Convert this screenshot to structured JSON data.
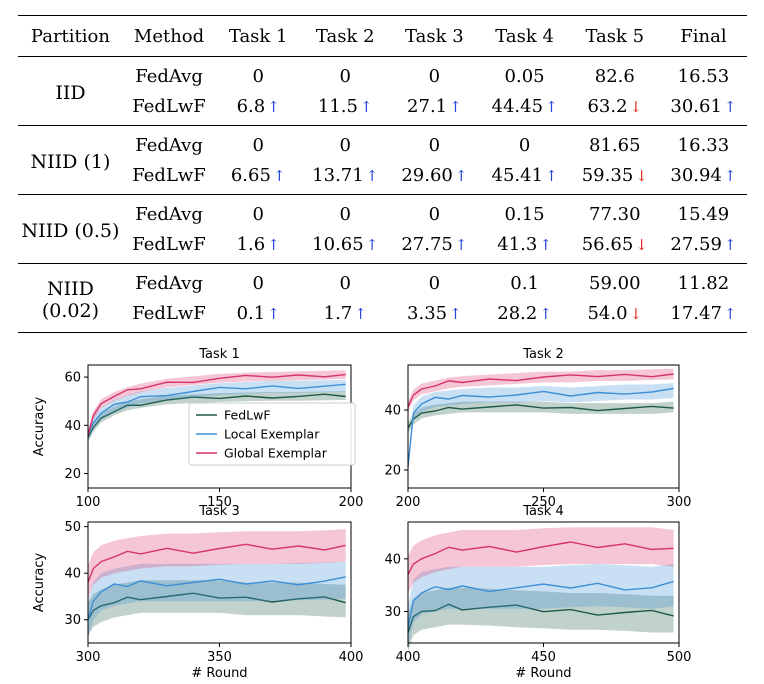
{
  "table": {
    "headers": [
      "Partition",
      "Method",
      "Task 1",
      "Task 2",
      "Task 3",
      "Task 4",
      "Task 5",
      "Final"
    ],
    "groups": [
      {
        "partition": "IID",
        "rows": [
          {
            "method": "FedAvg",
            "cells": [
              {
                "v": "0",
                "d": ""
              },
              {
                "v": "0",
                "d": ""
              },
              {
                "v": "0",
                "d": ""
              },
              {
                "v": "0.05",
                "d": ""
              },
              {
                "v": "82.6",
                "d": ""
              },
              {
                "v": "16.53",
                "d": ""
              }
            ]
          },
          {
            "method": "FedLwF",
            "cells": [
              {
                "v": "6.8",
                "d": "up"
              },
              {
                "v": "11.5",
                "d": "up"
              },
              {
                "v": "27.1",
                "d": "up"
              },
              {
                "v": "44.45",
                "d": "up"
              },
              {
                "v": "63.2",
                "d": "down"
              },
              {
                "v": "30.61",
                "d": "up"
              }
            ]
          }
        ]
      },
      {
        "partition": "NIID (1)",
        "rows": [
          {
            "method": "FedAvg",
            "cells": [
              {
                "v": "0",
                "d": ""
              },
              {
                "v": "0",
                "d": ""
              },
              {
                "v": "0",
                "d": ""
              },
              {
                "v": "0",
                "d": ""
              },
              {
                "v": "81.65",
                "d": ""
              },
              {
                "v": "16.33",
                "d": ""
              }
            ]
          },
          {
            "method": "FedLwF",
            "cells": [
              {
                "v": "6.65",
                "d": "up"
              },
              {
                "v": "13.71",
                "d": "up"
              },
              {
                "v": "29.60",
                "d": "up"
              },
              {
                "v": "45.41",
                "d": "up"
              },
              {
                "v": "59.35",
                "d": "down"
              },
              {
                "v": "30.94",
                "d": "up"
              }
            ]
          }
        ]
      },
      {
        "partition": "NIID (0.5)",
        "rows": [
          {
            "method": "FedAvg",
            "cells": [
              {
                "v": "0",
                "d": ""
              },
              {
                "v": "0",
                "d": ""
              },
              {
                "v": "0",
                "d": ""
              },
              {
                "v": "0.15",
                "d": ""
              },
              {
                "v": "77.30",
                "d": ""
              },
              {
                "v": "15.49",
                "d": ""
              }
            ]
          },
          {
            "method": "FedLwF",
            "cells": [
              {
                "v": "1.6",
                "d": "up"
              },
              {
                "v": "10.65",
                "d": "up"
              },
              {
                "v": "27.75",
                "d": "up"
              },
              {
                "v": "41.3",
                "d": "up"
              },
              {
                "v": "56.65",
                "d": "down"
              },
              {
                "v": "27.59",
                "d": "up"
              }
            ]
          }
        ]
      },
      {
        "partition": "NIID (0.02)",
        "rows": [
          {
            "method": "FedAvg",
            "cells": [
              {
                "v": "0",
                "d": ""
              },
              {
                "v": "0",
                "d": ""
              },
              {
                "v": "0",
                "d": ""
              },
              {
                "v": "0.1",
                "d": ""
              },
              {
                "v": "59.00",
                "d": ""
              },
              {
                "v": "11.82",
                "d": ""
              }
            ]
          },
          {
            "method": "FedLwF",
            "cells": [
              {
                "v": "0.1",
                "d": "up"
              },
              {
                "v": "1.7",
                "d": "up"
              },
              {
                "v": "3.35",
                "d": "up"
              },
              {
                "v": "28.2",
                "d": "up"
              },
              {
                "v": "54.0",
                "d": "down"
              },
              {
                "v": "17.47",
                "d": "up"
              }
            ]
          }
        ]
      }
    ],
    "arrow_up": "↑",
    "arrow_down": "↓",
    "colors": {
      "up": "#2346d6",
      "down": "#e0281f"
    }
  },
  "chart_data": [
    {
      "type": "line",
      "title": "Task 1",
      "ylabel": "Accuracy",
      "xlabel": "",
      "xlim": [
        100,
        200
      ],
      "ylim": [
        14,
        65
      ],
      "xticks": [
        100,
        150,
        200
      ],
      "yticks": [
        20,
        40,
        60
      ],
      "series": [
        {
          "name": "FedLwF",
          "color": "#1f5a48",
          "x": [
            100,
            102,
            105,
            110,
            115,
            120,
            130,
            140,
            150,
            160,
            170,
            180,
            190,
            198
          ],
          "y": [
            35,
            39,
            43,
            46,
            48,
            49,
            50.5,
            51,
            51.5,
            51.8,
            52,
            52,
            52.2,
            52.3
          ]
        },
        {
          "name": "Local Exemplar",
          "color": "#3d8fd6",
          "x": [
            100,
            102,
            105,
            110,
            115,
            120,
            130,
            140,
            150,
            160,
            170,
            180,
            190,
            198
          ],
          "y": [
            36,
            41,
            45,
            48,
            50,
            51.5,
            53,
            54,
            55,
            55.5,
            56,
            56,
            56.2,
            56.3
          ]
        },
        {
          "name": "Global Exemplar",
          "color": "#d6336c",
          "x": [
            100,
            102,
            105,
            110,
            115,
            120,
            130,
            140,
            150,
            160,
            170,
            180,
            190,
            198
          ],
          "y": [
            36,
            44,
            49,
            52,
            54,
            55.5,
            57.5,
            58.5,
            59.5,
            60,
            60.3,
            60.5,
            60.8,
            61
          ]
        }
      ]
    },
    {
      "type": "line",
      "title": "Task 2",
      "ylabel": "",
      "xlabel": "",
      "xlim": [
        200,
        300
      ],
      "ylim": [
        14,
        55
      ],
      "xticks": [
        200,
        250,
        300
      ],
      "yticks": [
        20,
        40
      ],
      "series": [
        {
          "name": "FedLwF",
          "color": "#1f5a48",
          "x": [
            200,
            202,
            205,
            210,
            215,
            220,
            230,
            240,
            250,
            260,
            270,
            280,
            290,
            298
          ],
          "y": [
            34,
            37,
            39,
            40,
            40.5,
            41,
            41,
            41,
            41,
            40.5,
            40.5,
            40.5,
            40.5,
            41
          ]
        },
        {
          "name": "Local Exemplar",
          "color": "#3d8fd6",
          "x": [
            200,
            202,
            205,
            210,
            215,
            220,
            230,
            240,
            250,
            260,
            270,
            280,
            290,
            298
          ],
          "y": [
            21,
            39,
            42,
            43.5,
            44,
            44.5,
            45,
            45,
            45.5,
            45,
            45.5,
            46,
            46,
            46.5
          ]
        },
        {
          "name": "Global Exemplar",
          "color": "#d6336c",
          "x": [
            200,
            202,
            205,
            210,
            215,
            220,
            230,
            240,
            250,
            260,
            270,
            280,
            290,
            298
          ],
          "y": [
            41,
            45,
            47,
            48,
            49,
            49.5,
            50,
            50.5,
            51,
            51,
            51.5,
            51.5,
            51.8,
            52
          ]
        }
      ]
    },
    {
      "type": "line",
      "title": "Task 3",
      "ylabel": "Accuracy",
      "xlabel": "# Round",
      "xlim": [
        300,
        400
      ],
      "ylim": [
        25,
        51
      ],
      "xticks": [
        300,
        350,
        400
      ],
      "yticks": [
        30,
        40,
        50
      ],
      "series": [
        {
          "name": "FedLwF",
          "color": "#1f5a48",
          "x": [
            300,
            302,
            305,
            310,
            315,
            320,
            330,
            340,
            350,
            360,
            370,
            380,
            390,
            398
          ],
          "y": [
            30,
            32,
            33,
            34,
            34.5,
            35,
            35,
            35,
            35,
            34.5,
            34.5,
            34.5,
            34.2,
            34
          ]
        },
        {
          "name": "Local Exemplar",
          "color": "#3d8fd6",
          "x": [
            300,
            302,
            305,
            310,
            315,
            320,
            330,
            340,
            350,
            360,
            370,
            380,
            390,
            398
          ],
          "y": [
            30,
            34,
            36,
            37,
            37.5,
            38,
            38,
            38,
            38,
            38,
            38,
            38.2,
            38.3,
            38.5
          ]
        },
        {
          "name": "Global Exemplar",
          "color": "#d6336c",
          "x": [
            300,
            302,
            305,
            310,
            315,
            320,
            330,
            340,
            350,
            360,
            370,
            380,
            390,
            398
          ],
          "y": [
            38,
            41,
            42.5,
            43.5,
            44,
            44.5,
            45,
            45,
            45.3,
            45.5,
            45.5,
            45.5,
            45.7,
            46
          ]
        }
      ]
    },
    {
      "type": "line",
      "title": "Task 4",
      "ylabel": "",
      "xlabel": "# Round",
      "xlim": [
        400,
        500
      ],
      "ylim": [
        24,
        47
      ],
      "xticks": [
        400,
        450,
        500
      ],
      "yticks": [
        30,
        40
      ],
      "series": [
        {
          "name": "FedLwF",
          "color": "#1f5a48",
          "x": [
            400,
            402,
            405,
            410,
            415,
            420,
            430,
            440,
            450,
            460,
            470,
            480,
            490,
            498
          ],
          "y": [
            26,
            29,
            30,
            30.5,
            31,
            31,
            30.8,
            30.5,
            30.3,
            30,
            30,
            29.8,
            29.5,
            29.5
          ]
        },
        {
          "name": "Local Exemplar",
          "color": "#3d8fd6",
          "x": [
            400,
            402,
            405,
            410,
            415,
            420,
            430,
            440,
            450,
            460,
            470,
            480,
            490,
            498
          ],
          "y": [
            27,
            32,
            33.5,
            34,
            34.5,
            34.5,
            34.5,
            34.5,
            34.5,
            34.8,
            35,
            34.8,
            34.5,
            35
          ]
        },
        {
          "name": "Global Exemplar",
          "color": "#d6336c",
          "x": [
            400,
            402,
            405,
            410,
            415,
            420,
            430,
            440,
            450,
            460,
            470,
            480,
            490,
            498
          ],
          "y": [
            37,
            39,
            40,
            41,
            41.5,
            42,
            42,
            42,
            42.3,
            42.5,
            42.5,
            42.5,
            42.5,
            42
          ]
        }
      ]
    }
  ]
}
